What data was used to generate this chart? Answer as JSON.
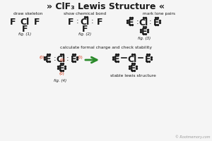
{
  "title_left": "»",
  "title_main": " ClF₃ Lewis Structure ",
  "title_right": "«",
  "bg_color": "#f5f5f5",
  "text_color": "#1a1a1a",
  "red_color": "#cc2200",
  "green_color": "#2a8a2a",
  "watermark": "© Rootmemory.com",
  "fig1_label": "draw skeleton",
  "fig2_label": "show chemical bond",
  "fig3_label": "mark lone pairs",
  "fig4_label": "calculate formal charge and check stability",
  "fig4_stable": "stable lewis structure",
  "fig1_cap": "fig. (1)",
  "fig2_cap": "fig. (2)",
  "fig3_cap": "fig. (3)",
  "fig4_cap": "fig. (4)"
}
